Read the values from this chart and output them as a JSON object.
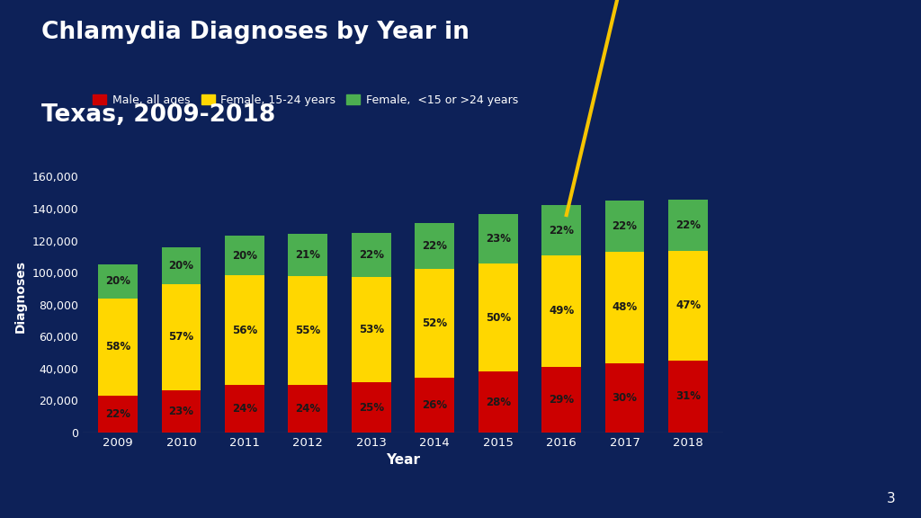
{
  "years": [
    2009,
    2010,
    2011,
    2012,
    2013,
    2014,
    2015,
    2016,
    2017,
    2018
  ],
  "totals": [
    105000,
    116000,
    123000,
    124000,
    125000,
    131000,
    135500,
    142000,
    145000,
    145500
  ],
  "male_pct": [
    22,
    23,
    24,
    24,
    25,
    26,
    28,
    29,
    30,
    31
  ],
  "female_young_pct": [
    58,
    57,
    56,
    55,
    53,
    52,
    50,
    49,
    48,
    47
  ],
  "female_other_pct": [
    20,
    20,
    20,
    21,
    22,
    22,
    23,
    22,
    22,
    22
  ],
  "male_color": "#cc0000",
  "female_young_color": "#ffd700",
  "female_other_color": "#4caf50",
  "background_color": "#0d2158",
  "text_color": "#ffffff",
  "bar_label_color": "#1a1a1a",
  "title_line1": "Chlamydia Diagnoses by Year in",
  "title_line2": "Texas, 2009-2018",
  "xlabel": "Year",
  "ylabel": "Diagnoses",
  "ylim": [
    0,
    170000
  ],
  "yticks": [
    0,
    20000,
    40000,
    60000,
    80000,
    100000,
    120000,
    140000,
    160000
  ],
  "legend_labels": [
    "Male, all ages",
    "Female, 15-24 years",
    "Female,  <15 or >24 years"
  ],
  "page_number": "3",
  "gold_color": "#f5c400",
  "right_panel_color": "#1c3a78"
}
